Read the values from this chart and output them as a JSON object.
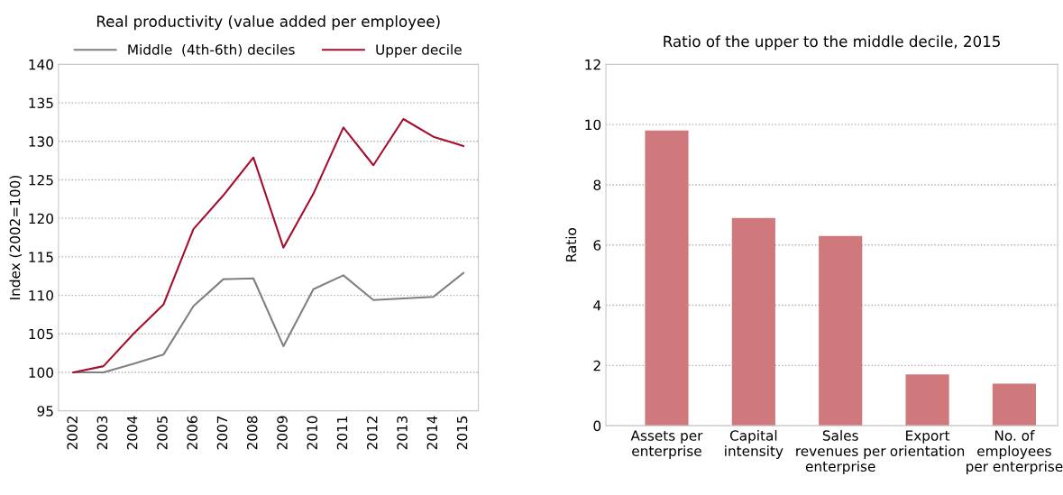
{
  "chart_data": [
    {
      "type": "line",
      "title": "Real productivity (value added per employee)",
      "ylabel": "Index (2002=100)",
      "categories": [
        "2002",
        "2003",
        "2004",
        "2005",
        "2006",
        "2007",
        "2008",
        "2009",
        "2010",
        "2011",
        "2012",
        "2013",
        "2014",
        "2015"
      ],
      "series": [
        {
          "name": "Middle  (4th-6th) deciles",
          "color": "#808080",
          "values": [
            100,
            100,
            101.1,
            102.3,
            108.6,
            112.1,
            112.2,
            103.4,
            110.8,
            112.6,
            109.4,
            109.6,
            109.8,
            112.9
          ]
        },
        {
          "name": "Upper decile",
          "color": "#a50f2d",
          "values": [
            100,
            100.8,
            105,
            108.8,
            118.6,
            123,
            127.9,
            116.2,
            123.2,
            131.8,
            126.9,
            132.9,
            130.6,
            129.4
          ]
        }
      ],
      "ylim": [
        95,
        140
      ],
      "yticks": [
        95,
        100,
        105,
        110,
        115,
        120,
        125,
        130,
        135,
        140
      ],
      "grid": "y",
      "legend": "top",
      "line_style": "solid",
      "marker": "none"
    },
    {
      "type": "bar",
      "title": "Ratio of the upper to the middle decile, 2015",
      "ylabel": "Ratio",
      "categories": [
        "Assets per\nenterprise",
        "Capital\nintensity",
        "Sales\nrevenues per\nenterprise",
        "Export\norientation",
        "No. of\nemployees\nper enterprise"
      ],
      "values": [
        9.8,
        6.9,
        6.3,
        1.7,
        1.4
      ],
      "color": "#d0797c",
      "ylim": [
        0,
        12
      ],
      "yticks": [
        0,
        2,
        4,
        6,
        8,
        10,
        12
      ],
      "grid": "y"
    }
  ]
}
